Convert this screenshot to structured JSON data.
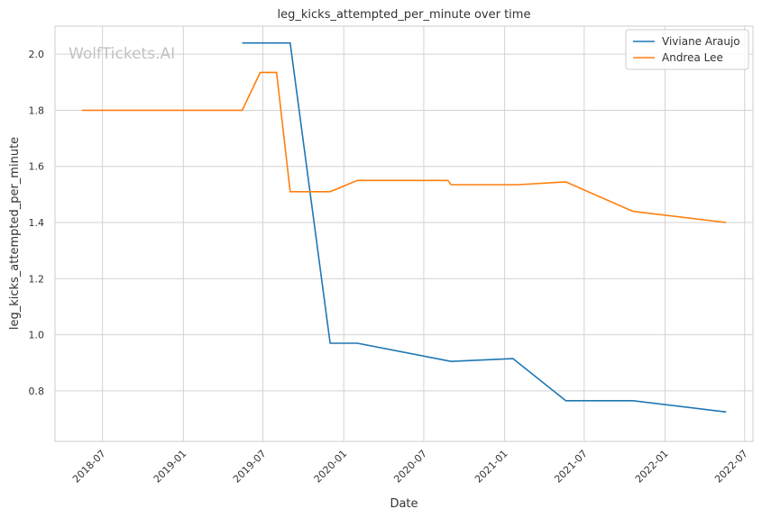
{
  "watermark": "WolfTickets.AI",
  "chart_data": {
    "type": "line",
    "title": "leg_kicks_attempted_per_minute over time",
    "xlabel": "Date",
    "ylabel": "leg_kicks_attempted_per_minute",
    "x_scale": "date",
    "xlim": [
      "2018-03-15",
      "2022-07-20"
    ],
    "ylim": [
      0.62,
      2.1
    ],
    "x_ticks": [
      "2018-07",
      "2019-01",
      "2019-07",
      "2020-01",
      "2020-07",
      "2021-01",
      "2021-07",
      "2022-01",
      "2022-07"
    ],
    "y_ticks": [
      "0.8",
      "1.0",
      "1.2",
      "1.4",
      "1.6",
      "1.8",
      "2.0"
    ],
    "grid": true,
    "legend_position": "top-right",
    "series": [
      {
        "name": "Viviane Araujo",
        "color": "#1f77b4",
        "points": [
          {
            "x": "2019-05-15",
            "y": 2.04
          },
          {
            "x": "2019-09-01",
            "y": 2.04
          },
          {
            "x": "2019-12-01",
            "y": 0.97
          },
          {
            "x": "2020-02-01",
            "y": 0.97
          },
          {
            "x": "2020-09-01",
            "y": 0.905
          },
          {
            "x": "2021-01-20",
            "y": 0.915
          },
          {
            "x": "2021-05-20",
            "y": 0.765
          },
          {
            "x": "2021-10-20",
            "y": 0.765
          },
          {
            "x": "2022-05-20",
            "y": 0.725
          }
        ]
      },
      {
        "name": "Andrea Lee",
        "color": "#ff7f0e",
        "points": [
          {
            "x": "2018-05-15",
            "y": 1.8
          },
          {
            "x": "2019-05-15",
            "y": 1.8
          },
          {
            "x": "2019-06-25",
            "y": 1.935
          },
          {
            "x": "2019-08-01",
            "y": 1.935
          },
          {
            "x": "2019-09-01",
            "y": 1.51
          },
          {
            "x": "2019-12-01",
            "y": 1.51
          },
          {
            "x": "2020-02-01",
            "y": 1.55
          },
          {
            "x": "2020-08-25",
            "y": 1.55
          },
          {
            "x": "2020-09-01",
            "y": 1.535
          },
          {
            "x": "2021-02-01",
            "y": 1.535
          },
          {
            "x": "2021-05-20",
            "y": 1.545
          },
          {
            "x": "2021-10-20",
            "y": 1.44
          },
          {
            "x": "2022-05-20",
            "y": 1.4
          }
        ]
      }
    ]
  }
}
